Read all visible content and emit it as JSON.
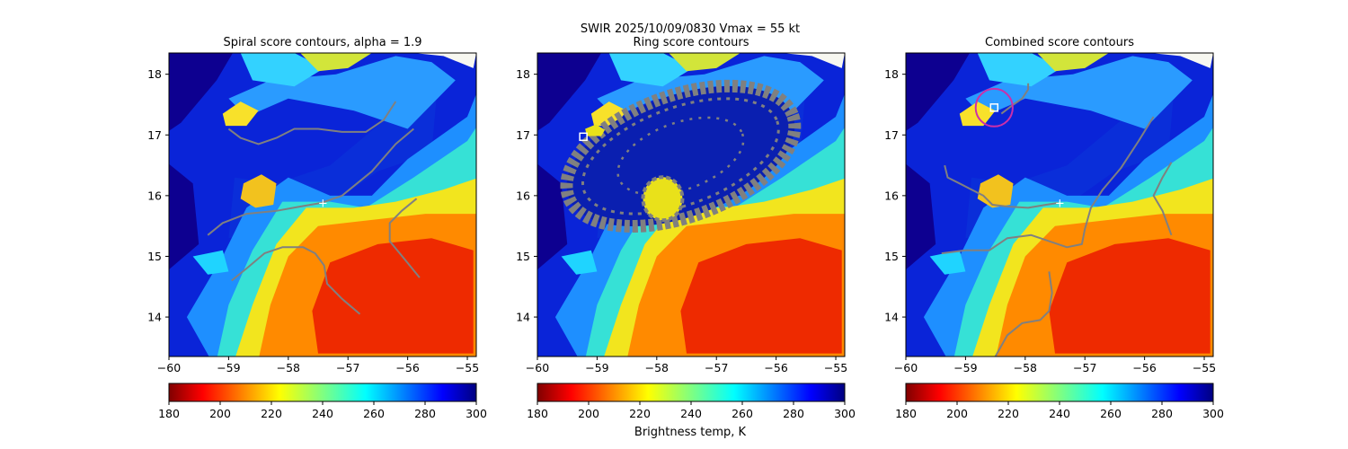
{
  "suptitle": "SWIR  2025/10/09/0830    Vmax = 55 kt",
  "colorbar_label": "Brightness temp, K",
  "chart_data": [
    {
      "type": "heatmap",
      "title": "Spiral score contours, alpha =  1.9",
      "xlim": [
        -60,
        -54.85
      ],
      "ylim": [
        13.35,
        18.35
      ],
      "xticks": [
        -60,
        -59,
        -58,
        -57,
        -56,
        -55
      ],
      "yticks": [
        14,
        15,
        16,
        17,
        18
      ],
      "colorbar": {
        "min": 180,
        "max": 300,
        "ticks": [
          180,
          200,
          220,
          240,
          260,
          280,
          300
        ],
        "colormap": "jet_r"
      },
      "contour_color": "#808080",
      "contours": [
        [
          [
            -59,
            17.1
          ],
          [
            -58.8,
            16.95
          ],
          [
            -58.5,
            16.85
          ],
          [
            -58.2,
            16.95
          ],
          [
            -57.9,
            17.1
          ],
          [
            -57.5,
            17.1
          ],
          [
            -57.1,
            17.05
          ],
          [
            -56.7,
            17.05
          ],
          [
            -56.4,
            17.25
          ],
          [
            -56.2,
            17.55
          ]
        ],
        [
          [
            -59.35,
            15.35
          ],
          [
            -59.1,
            15.55
          ],
          [
            -58.7,
            15.7
          ],
          [
            -58.2,
            15.75
          ],
          [
            -57.8,
            15.82
          ],
          [
            -57.45,
            15.88
          ],
          [
            -57.1,
            16.0
          ],
          [
            -56.6,
            16.4
          ],
          [
            -56.2,
            16.85
          ],
          [
            -55.9,
            17.1
          ]
        ],
        [
          [
            -58.95,
            14.6
          ],
          [
            -58.7,
            14.8
          ],
          [
            -58.4,
            15.05
          ],
          [
            -58.1,
            15.15
          ],
          [
            -57.75,
            15.15
          ],
          [
            -57.55,
            15.05
          ],
          [
            -57.4,
            14.85
          ],
          [
            -57.35,
            14.55
          ],
          [
            -57.1,
            14.3
          ],
          [
            -56.8,
            14.05
          ]
        ],
        [
          [
            -55.85,
            15.95
          ],
          [
            -56.1,
            15.75
          ],
          [
            -56.3,
            15.55
          ],
          [
            -56.3,
            15.25
          ],
          [
            -56.05,
            14.95
          ],
          [
            -55.8,
            14.65
          ]
        ]
      ],
      "center_marker": {
        "x": -57.42,
        "y": 15.87,
        "symbol": "+"
      }
    },
    {
      "type": "heatmap",
      "title": "Ring score contours",
      "xlim": [
        -60,
        -54.85
      ],
      "ylim": [
        13.35,
        18.35
      ],
      "xticks": [
        -60,
        -59,
        -58,
        -57,
        -56,
        -55
      ],
      "yticks": [
        14,
        15,
        16,
        17,
        18
      ],
      "colorbar": {
        "min": 180,
        "max": 300,
        "ticks": [
          180,
          200,
          220,
          240,
          260,
          280,
          300
        ],
        "colormap": "jet_r"
      },
      "contour_color": "#808080",
      "contour_region": {
        "center_x": -57.6,
        "center_y": 16.65,
        "rx": 2.0,
        "ry": 1.0,
        "angle_deg": -20
      },
      "square_marker": {
        "x": -59.23,
        "y": 16.97
      }
    },
    {
      "type": "heatmap",
      "title": "Combined score contours",
      "xlim": [
        -60,
        -54.85
      ],
      "ylim": [
        13.35,
        18.35
      ],
      "xticks": [
        -60,
        -59,
        -58,
        -57,
        -56,
        -55
      ],
      "yticks": [
        14,
        15,
        16,
        17,
        18
      ],
      "colorbar": {
        "min": 180,
        "max": 300,
        "ticks": [
          180,
          200,
          220,
          240,
          260,
          280,
          300
        ],
        "colormap": "jet_r"
      },
      "contour_color": "#808080",
      "contours": [
        [
          [
            -58.4,
            17.35
          ],
          [
            -58.2,
            17.5
          ],
          [
            -58.05,
            17.6
          ],
          [
            -57.95,
            17.75
          ],
          [
            -57.95,
            17.85
          ]
        ],
        [
          [
            -59.35,
            16.5
          ],
          [
            -59.3,
            16.3
          ],
          [
            -59.1,
            16.2
          ],
          [
            -58.9,
            16.1
          ],
          [
            -58.7,
            16.0
          ],
          [
            -58.55,
            15.85
          ],
          [
            -58.3,
            15.82
          ],
          [
            -57.95,
            15.8
          ],
          [
            -57.65,
            15.85
          ],
          [
            -57.45,
            15.88
          ]
        ],
        [
          [
            -59.4,
            15.05
          ],
          [
            -59.0,
            15.1
          ],
          [
            -58.6,
            15.1
          ],
          [
            -58.3,
            15.3
          ],
          [
            -57.9,
            15.35
          ],
          [
            -57.6,
            15.25
          ],
          [
            -57.3,
            15.15
          ],
          [
            -57.05,
            15.2
          ],
          [
            -57.0,
            15.45
          ],
          [
            -56.9,
            15.8
          ],
          [
            -56.7,
            16.1
          ],
          [
            -56.4,
            16.45
          ],
          [
            -56.1,
            16.9
          ],
          [
            -55.85,
            17.3
          ]
        ],
        [
          [
            -58.5,
            13.35
          ],
          [
            -58.3,
            13.7
          ],
          [
            -58.05,
            13.9
          ],
          [
            -57.75,
            13.95
          ],
          [
            -57.6,
            14.1
          ],
          [
            -57.55,
            14.4
          ],
          [
            -57.6,
            14.75
          ]
        ],
        [
          [
            -55.55,
            16.55
          ],
          [
            -55.7,
            16.3
          ],
          [
            -55.85,
            16.0
          ],
          [
            -55.7,
            15.75
          ],
          [
            -55.55,
            15.35
          ]
        ]
      ],
      "center_marker": {
        "x": -57.42,
        "y": 15.87,
        "symbol": "+"
      },
      "square_marker": {
        "x": -58.52,
        "y": 17.45
      },
      "circle": {
        "x": -58.52,
        "y": 17.45,
        "radius_deg": 0.31,
        "color": "#cc2faa"
      }
    }
  ]
}
